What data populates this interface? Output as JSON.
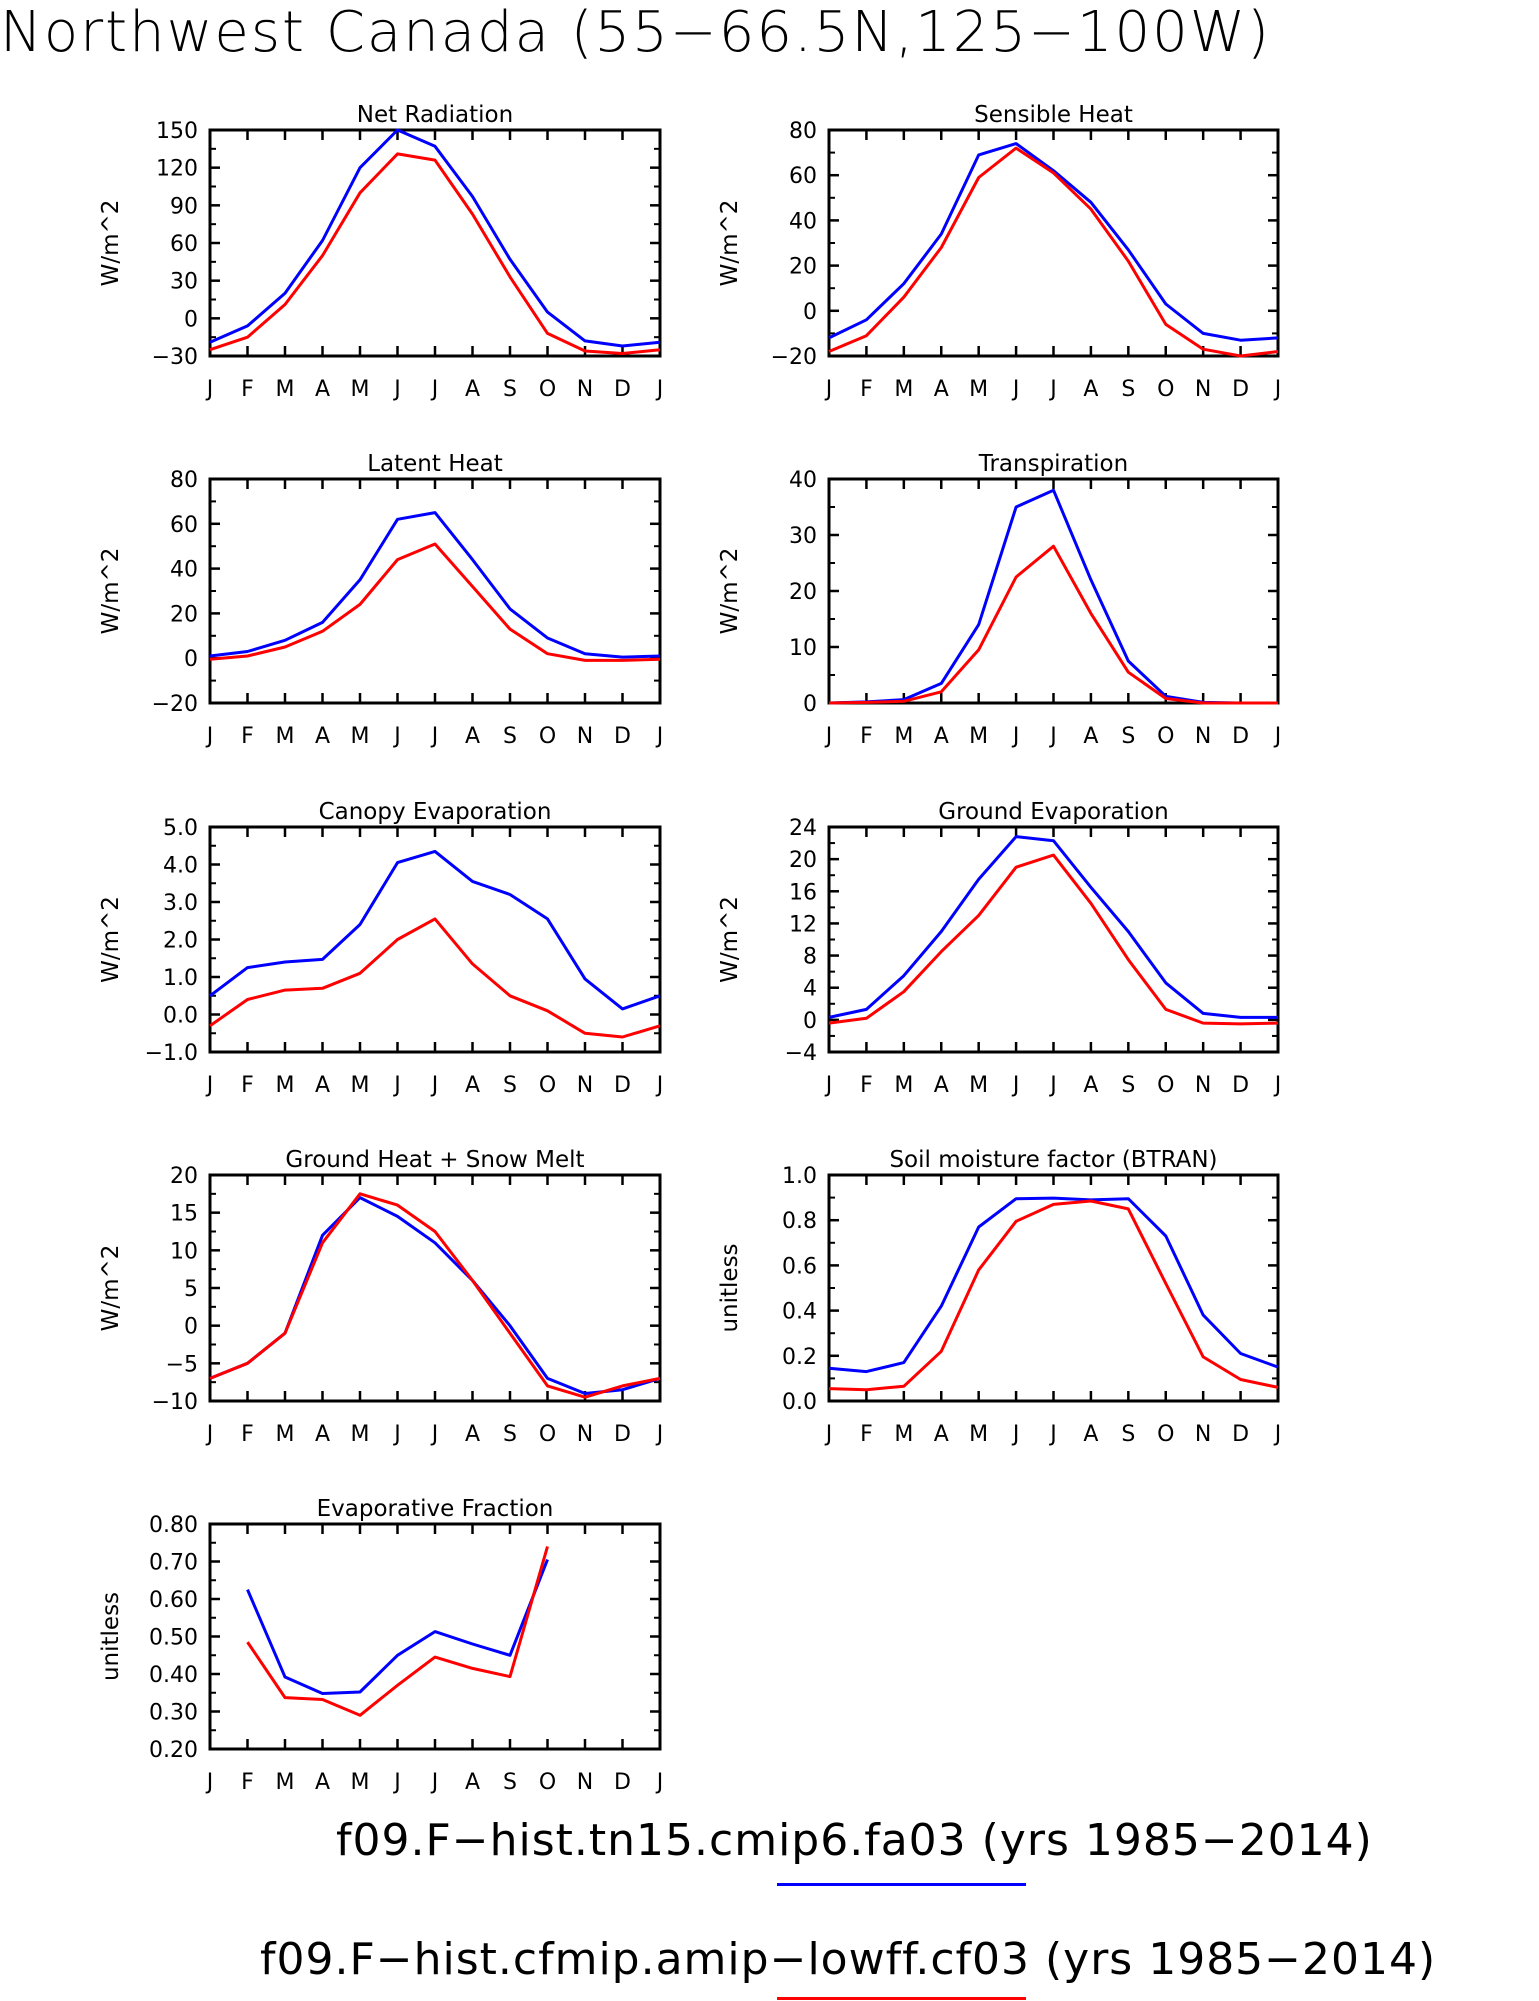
{
  "title": "Northwest Canada (55−66.5N,125−100W)",
  "legend": [
    {
      "label": "f09.F−hist.tn15.cmip6.fa03 (yrs 1985−2014)",
      "color": "#0000ff"
    },
    {
      "label": "f09.F−hist.cfmip.amip−lowff.cf03 (yrs 1985−2014)",
      "color": "#ff0000"
    }
  ],
  "colors": {
    "series1": "#0000ff",
    "series2": "#ff0000"
  },
  "chart_data": [
    {
      "type": "line",
      "title": "Net Radiation",
      "ylabel": "W/m^2",
      "x": [
        "J",
        "F",
        "M",
        "A",
        "M",
        "J",
        "J",
        "A",
        "S",
        "O",
        "N",
        "D",
        "J"
      ],
      "ylim": [
        -30,
        150
      ],
      "yticks": [
        "-30",
        "0",
        "30",
        "60",
        "90",
        "120",
        "150"
      ],
      "series": [
        {
          "values": [
            -19,
            -6,
            20,
            62,
            120,
            150,
            137,
            97,
            47,
            5,
            -18,
            -22,
            -19
          ]
        },
        {
          "values": [
            -25,
            -15,
            11,
            50,
            100,
            131,
            126,
            83,
            33,
            -12,
            -26,
            -28,
            -25
          ]
        }
      ]
    },
    {
      "type": "line",
      "title": "Sensible Heat",
      "ylabel": "W/m^2",
      "x": [
        "J",
        "F",
        "M",
        "A",
        "M",
        "J",
        "J",
        "A",
        "S",
        "O",
        "N",
        "D",
        "J"
      ],
      "ylim": [
        -20,
        80
      ],
      "yticks": [
        "-20",
        "0",
        "20",
        "40",
        "60",
        "80"
      ],
      "series": [
        {
          "values": [
            -12,
            -4,
            12,
            34,
            69,
            74,
            62,
            48,
            27,
            3,
            -10,
            -13,
            -12
          ]
        },
        {
          "values": [
            -18,
            -11,
            6,
            28,
            59,
            72,
            61,
            45,
            22,
            -6,
            -17,
            -20,
            -18
          ]
        }
      ]
    },
    {
      "type": "line",
      "title": "Latent Heat",
      "ylabel": "W/m^2",
      "x": [
        "J",
        "F",
        "M",
        "A",
        "M",
        "J",
        "J",
        "A",
        "S",
        "O",
        "N",
        "D",
        "J"
      ],
      "ylim": [
        -20,
        80
      ],
      "yticks": [
        "-20",
        "0",
        "20",
        "40",
        "60",
        "80"
      ],
      "series": [
        {
          "values": [
            1,
            3,
            8,
            16,
            35,
            62,
            65,
            44,
            22,
            9,
            2,
            0.5,
            1
          ]
        },
        {
          "values": [
            -0.5,
            1,
            5,
            12,
            24,
            44,
            51,
            32,
            13,
            2,
            -1,
            -1,
            -0.5
          ]
        }
      ]
    },
    {
      "type": "line",
      "title": "Transpiration",
      "ylabel": "W/m^2",
      "x": [
        "J",
        "F",
        "M",
        "A",
        "M",
        "J",
        "J",
        "A",
        "S",
        "O",
        "N",
        "D",
        "J"
      ],
      "ylim": [
        0,
        40
      ],
      "yticks": [
        "0",
        "10",
        "20",
        "30",
        "40"
      ],
      "series": [
        {
          "values": [
            0,
            0.2,
            0.6,
            3.5,
            14,
            35,
            38,
            22,
            7.5,
            1.2,
            0.1,
            0,
            0
          ]
        },
        {
          "values": [
            0,
            0.1,
            0.3,
            2,
            9.5,
            22.5,
            28,
            16,
            5.5,
            0.8,
            0,
            0,
            0
          ]
        }
      ]
    },
    {
      "type": "line",
      "title": "Canopy Evaporation",
      "ylabel": "W/m^2",
      "x": [
        "J",
        "F",
        "M",
        "A",
        "M",
        "J",
        "J",
        "A",
        "S",
        "O",
        "N",
        "D",
        "J"
      ],
      "ylim": [
        -1.0,
        5.0
      ],
      "yticks": [
        "-1.0",
        "0.0",
        "1.0",
        "2.0",
        "3.0",
        "4.0",
        "5.0"
      ],
      "series": [
        {
          "values": [
            0.5,
            1.25,
            1.4,
            1.47,
            2.4,
            4.05,
            4.35,
            3.55,
            3.2,
            2.55,
            0.95,
            0.15,
            0.5
          ]
        },
        {
          "values": [
            -0.3,
            0.4,
            0.65,
            0.7,
            1.1,
            2.0,
            2.55,
            1.35,
            0.5,
            0.1,
            -0.5,
            -0.6,
            -0.3
          ]
        }
      ]
    },
    {
      "type": "line",
      "title": "Ground Evaporation",
      "ylabel": "W/m^2",
      "x": [
        "J",
        "F",
        "M",
        "A",
        "M",
        "J",
        "J",
        "A",
        "S",
        "O",
        "N",
        "D",
        "J"
      ],
      "ylim": [
        -4,
        24
      ],
      "yticks": [
        "-4",
        "0",
        "4",
        "8",
        "12",
        "16",
        "20",
        "24"
      ],
      "series": [
        {
          "values": [
            0.3,
            1.3,
            5.5,
            11,
            17.5,
            22.8,
            22.3,
            16.5,
            11,
            4.6,
            0.8,
            0.3,
            0.3
          ]
        },
        {
          "values": [
            -0.4,
            0.2,
            3.5,
            8.5,
            13,
            19,
            20.5,
            14.5,
            7.5,
            1.3,
            -0.4,
            -0.5,
            -0.4
          ]
        }
      ]
    },
    {
      "type": "line",
      "title": "Ground Heat + Snow Melt",
      "ylabel": "W/m^2",
      "x": [
        "J",
        "F",
        "M",
        "A",
        "M",
        "J",
        "J",
        "A",
        "S",
        "O",
        "N",
        "D",
        "J"
      ],
      "ylim": [
        -10,
        20
      ],
      "yticks": [
        "-10",
        "-5",
        "0",
        "5",
        "10",
        "15",
        "20"
      ],
      "series": [
        {
          "values": [
            -7,
            -5,
            -1,
            12,
            17,
            14.5,
            11,
            6,
            0,
            -7,
            -9,
            -8.5,
            -7
          ]
        },
        {
          "values": [
            -7,
            -5,
            -1,
            11,
            17.5,
            16,
            12.5,
            6,
            -1,
            -8,
            -9.5,
            -8,
            -7
          ]
        }
      ]
    },
    {
      "type": "line",
      "title": "Soil moisture factor (BTRAN)",
      "ylabel": "unitless",
      "x": [
        "J",
        "F",
        "M",
        "A",
        "M",
        "J",
        "J",
        "A",
        "S",
        "O",
        "N",
        "D",
        "J"
      ],
      "ylim": [
        0.0,
        1.0
      ],
      "yticks": [
        "0.0",
        "0.2",
        "0.4",
        "0.6",
        "0.8",
        "1.0"
      ],
      "series": [
        {
          "values": [
            0.145,
            0.13,
            0.17,
            0.42,
            0.77,
            0.895,
            0.898,
            0.89,
            0.895,
            0.73,
            0.38,
            0.21,
            0.15
          ]
        },
        {
          "values": [
            0.055,
            0.05,
            0.065,
            0.22,
            0.58,
            0.795,
            0.87,
            0.885,
            0.85,
            0.52,
            0.195,
            0.095,
            0.06
          ]
        }
      ]
    },
    {
      "type": "line",
      "title": "Evaporative Fraction",
      "ylabel": "unitless",
      "x": [
        "J",
        "F",
        "M",
        "A",
        "M",
        "J",
        "J",
        "A",
        "S",
        "O",
        "N",
        "D",
        "J"
      ],
      "ylim": [
        0.2,
        0.8
      ],
      "yticks": [
        "0.20",
        "0.30",
        "0.40",
        "0.50",
        "0.60",
        "0.70",
        "0.80"
      ],
      "series": [
        {
          "values": [
            null,
            0.625,
            0.392,
            0.348,
            0.352,
            0.45,
            0.513,
            0.48,
            0.45,
            0.705,
            null,
            null,
            null
          ]
        },
        {
          "values": [
            null,
            0.485,
            0.337,
            0.332,
            0.29,
            0.37,
            0.445,
            0.415,
            0.393,
            0.74,
            null,
            null,
            null
          ]
        }
      ]
    }
  ]
}
